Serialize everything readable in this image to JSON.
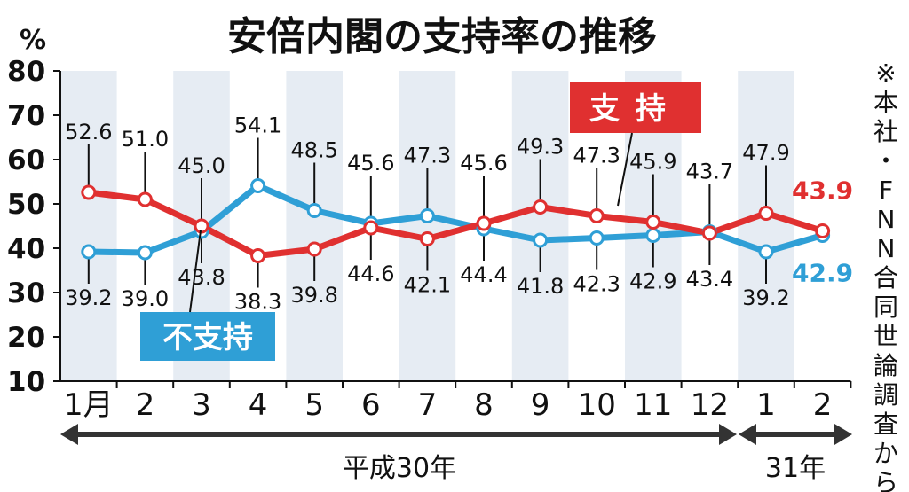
{
  "title": "安倍内閣の支持率の推移",
  "unit_label": "%",
  "source_note": "※本社・FNN合同世論調査から",
  "era_labels": [
    "平成30年",
    "31年"
  ],
  "colors": {
    "support": "#e03030",
    "nonsupport": "#2f9fd6",
    "band": "#e6ecf3",
    "text": "#111111"
  },
  "chart_data": {
    "type": "line",
    "categories": [
      "1月",
      "2",
      "3",
      "4",
      "5",
      "6",
      "7",
      "8",
      "9",
      "10",
      "11",
      "12",
      "1",
      "2"
    ],
    "ylim": [
      10,
      80
    ],
    "yticks": [
      10,
      20,
      30,
      40,
      50,
      60,
      70,
      80
    ],
    "grid": "alternating-column-bands",
    "series": [
      {
        "name": "支持",
        "color": "#e03030",
        "values": [
          52.6,
          51.0,
          45.0,
          38.3,
          39.8,
          44.6,
          42.1,
          45.6,
          49.3,
          47.3,
          45.9,
          43.4,
          47.9,
          43.9
        ]
      },
      {
        "name": "不支持",
        "color": "#2f9fd6",
        "values": [
          39.2,
          39.0,
          43.8,
          54.1,
          48.5,
          45.6,
          47.3,
          44.4,
          41.8,
          42.3,
          42.9,
          43.7,
          39.2,
          42.9
        ]
      }
    ]
  }
}
